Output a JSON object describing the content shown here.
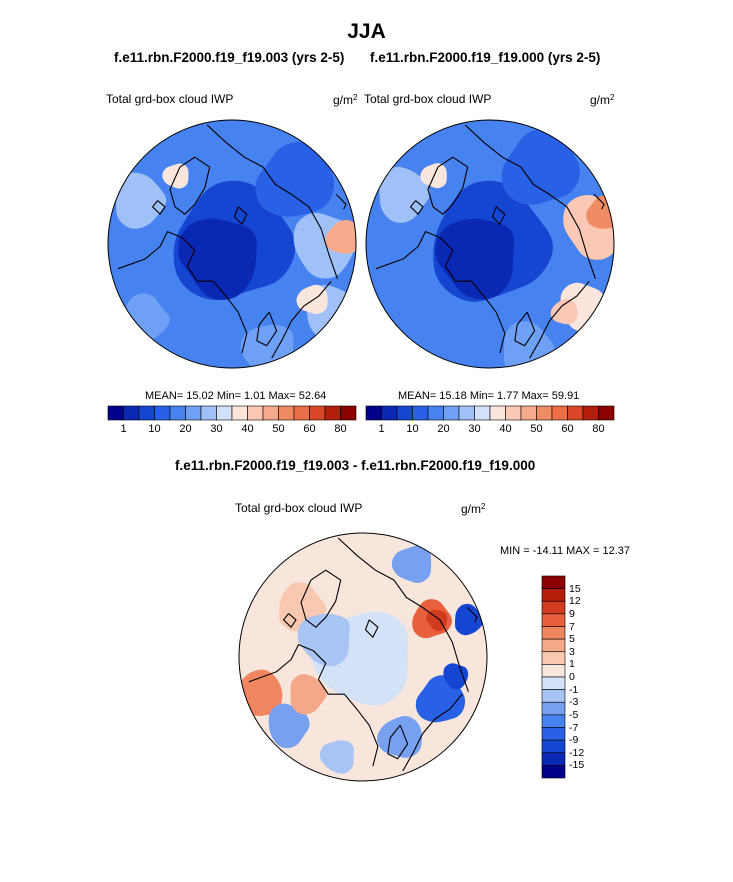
{
  "figure": {
    "title": "JJA",
    "panels": [
      {
        "case": "f.e11.rbn.F2000.f19_f19.003 (yrs 2-5)",
        "variable": "Total grd-box cloud IWP",
        "units_base": "g/m",
        "units_exp": "2",
        "stats": "MEAN=  15.02  Min=   1.01  Max=  52.64",
        "colorbar_ticks": [
          "1",
          "10",
          "20",
          "30",
          "40",
          "50",
          "60",
          "80"
        ]
      },
      {
        "case": "f.e11.rbn.F2000.f19_f19.000 (yrs 2-5)",
        "variable": "Total grd-box cloud IWP",
        "units_base": "g/m",
        "units_exp": "2",
        "stats": "MEAN=  15.18  Min=   1.77  Max=  59.91",
        "colorbar_ticks": [
          "1",
          "10",
          "20",
          "30",
          "40",
          "50",
          "60",
          "80"
        ]
      },
      {
        "case": "f.e11.rbn.F2000.f19_f19.003 - f.e11.rbn.F2000.f19_f19.000",
        "variable": "Total grd-box cloud IWP",
        "units_base": "g/m",
        "units_exp": "2",
        "stats": "MIN = -14.11 MAX =  12.37",
        "colorbar_ticks": [
          "15",
          "12",
          "9",
          "7",
          "5",
          "3",
          "1",
          "0",
          "-1",
          "-3",
          "-5",
          "-7",
          "-9",
          "-12",
          "-15"
        ]
      }
    ]
  },
  "chart_data": [
    {
      "type": "heatmap",
      "projection": "polar-stereographic (north pole)",
      "title": "f.e11.rbn.F2000.f19_f19.003 (yrs 2-5)",
      "variable": "Total grd-box cloud IWP",
      "units": "g/m2",
      "mean": 15.02,
      "min": 1.01,
      "max": 52.64,
      "levels": [
        1,
        5,
        10,
        15,
        20,
        25,
        30,
        35,
        40,
        45,
        50,
        55,
        60,
        70,
        80
      ],
      "colors": [
        "#00008c",
        "#0a28b4",
        "#1446d2",
        "#2860e6",
        "#4682f0",
        "#6ea0f5",
        "#a0c0f8",
        "#d2e0fa",
        "#fae6dc",
        "#fac8b4",
        "#f5aa8c",
        "#f08c64",
        "#eb6e46",
        "#dc4628",
        "#b41e0a",
        "#8c0000"
      ]
    },
    {
      "type": "heatmap",
      "projection": "polar-stereographic (north pole)",
      "title": "f.e11.rbn.F2000.f19_f19.000 (yrs 2-5)",
      "variable": "Total grd-box cloud IWP",
      "units": "g/m2",
      "mean": 15.18,
      "min": 1.77,
      "max": 59.91,
      "levels": [
        1,
        5,
        10,
        15,
        20,
        25,
        30,
        35,
        40,
        45,
        50,
        55,
        60,
        70,
        80
      ],
      "colors": [
        "#00008c",
        "#0a28b4",
        "#1446d2",
        "#2860e6",
        "#4682f0",
        "#6ea0f5",
        "#a0c0f8",
        "#d2e0fa",
        "#fae6dc",
        "#fac8b4",
        "#f5aa8c",
        "#f08c64",
        "#eb6e46",
        "#dc4628",
        "#b41e0a",
        "#8c0000"
      ]
    },
    {
      "type": "heatmap",
      "projection": "polar-stereographic (north pole)",
      "title": "f.e11.rbn.F2000.f19_f19.003 - f.e11.rbn.F2000.f19_f19.000",
      "variable": "Total grd-box cloud IWP",
      "units": "g/m2",
      "min": -14.11,
      "max": 12.37,
      "levels": [
        -15,
        -12,
        -9,
        -7,
        -5,
        -3,
        -1,
        0,
        1,
        3,
        5,
        7,
        9,
        12,
        15
      ],
      "colors": [
        "#00008c",
        "#0a28b4",
        "#1446d2",
        "#2860e6",
        "#4682f0",
        "#78a0f0",
        "#a8c4f4",
        "#d4e2f8",
        "#f8e6dc",
        "#f8c8b0",
        "#f5a888",
        "#f08660",
        "#e8603c",
        "#d23c1e",
        "#b41e0a",
        "#8c0000"
      ]
    }
  ]
}
